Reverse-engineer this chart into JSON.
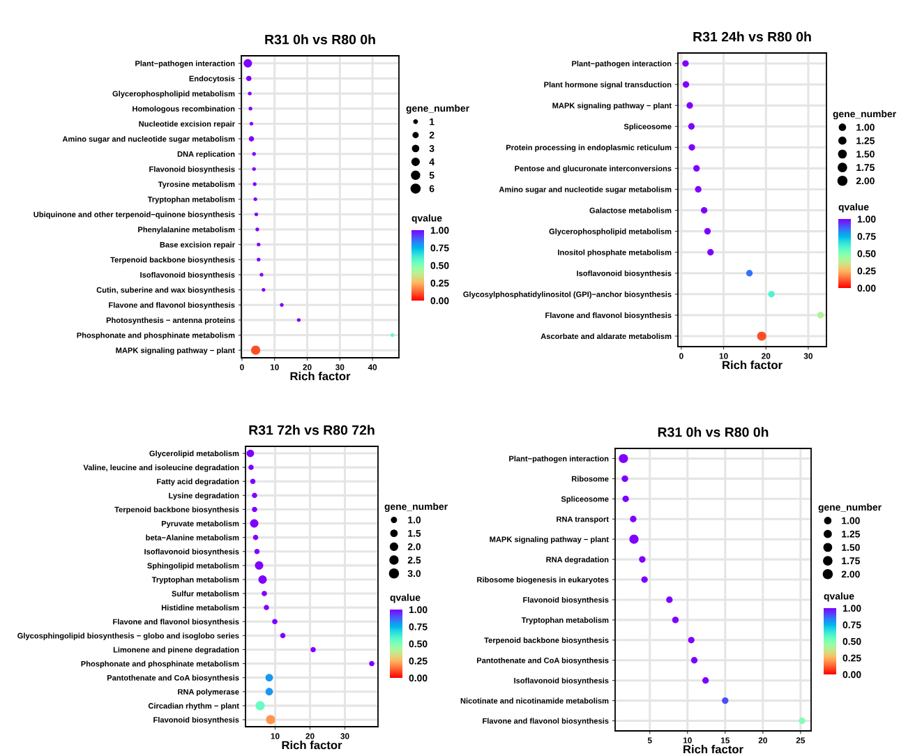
{
  "chart_data": [
    {
      "type": "bubble",
      "title": "R31 0h vs R80 0h",
      "xlabel": "Rich factor",
      "orientation": "horizontal",
      "categories": [
        "Plant−pathogen interaction",
        "Endocytosis",
        "Glycerophospholipid metabolism",
        "Homologous recombination",
        "Nucleotide excision repair",
        "Amino sugar and nucleotide sugar metabolism",
        "DNA replication",
        "Flavonoid biosynthesis",
        "Tyrosine metabolism",
        "Tryptophan metabolism",
        "Ubiquinone and other terpenoid−quinone biosynthesis",
        "Phenylalanine metabolism",
        "Base excision repair",
        "Terpenoid backbone biosynthesis",
        "Isoflavonoid biosynthesis",
        "Cutin, suberine and wax biosynthesis",
        "Flavone and flavonol biosynthesis",
        "Photosynthesis − antenna proteins",
        "Phosphonate and phosphinate metabolism",
        "MAPK signaling pathway − plant"
      ],
      "values": [
        1.8,
        2.1,
        2.4,
        2.6,
        2.9,
        2.9,
        3.7,
        3.7,
        3.9,
        4.1,
        4.4,
        4.7,
        5.1,
        5.1,
        6.0,
        6.6,
        12.2,
        17.4,
        46.1,
        4.2
      ],
      "sizes": [
        5,
        2,
        1,
        1,
        1,
        2,
        1,
        1,
        1,
        1,
        1,
        1,
        1,
        1,
        1,
        1,
        1,
        1,
        1,
        6
      ],
      "cvalues": [
        1.0,
        1.0,
        1.0,
        1.0,
        1.0,
        1.0,
        1.0,
        1.0,
        1.0,
        1.0,
        1.0,
        1.0,
        1.0,
        1.0,
        1.0,
        1.0,
        1.0,
        1.0,
        0.55,
        0.1
      ],
      "legend_title": "gene_number",
      "size_legend": [
        1,
        2,
        3,
        4,
        5,
        6
      ],
      "clabel": "qvalue",
      "clim": [
        0,
        1
      ],
      "cticks": [
        {
          "value": 0,
          "label": "0.00"
        },
        {
          "value": 0.25,
          "label": "0.25"
        },
        {
          "value": 0.5,
          "label": "0.50"
        },
        {
          "value": 0.75,
          "label": "0.75"
        },
        {
          "value": 1,
          "label": "1.00"
        }
      ],
      "xlim": [
        -0.2,
        48.1
      ],
      "xticks": [
        0,
        10,
        20,
        30,
        40
      ],
      "grid": true
    },
    {
      "type": "bubble",
      "title": "R31 24h vs R80 0h",
      "xlabel": "Rich factor",
      "orientation": "horizontal",
      "categories": [
        "Plant−pathogen interaction",
        "Plant hormone signal transduction",
        "MAPK signaling pathway − plant",
        "Spliceosome",
        "Protein processing in endoplasmic reticulum",
        "Pentose and glucuronate interconversions",
        "Amino sugar and nucleotide sugar metabolism",
        "Galactose metabolism",
        "Glycerophospholipid metabolism",
        "Inositol phosphate metabolism",
        "Isoflavonoid biosynthesis",
        "Glycosylphosphatidylinositol (GPI)−anchor biosynthesis",
        "Flavone and flavonol biosynthesis",
        "Ascorbate and aldarate metabolism"
      ],
      "values": [
        1.0,
        1.1,
        2.0,
        2.4,
        2.5,
        3.6,
        4.0,
        5.4,
        6.2,
        6.9,
        16.1,
        21.3,
        32.9,
        19.0
      ],
      "sizes": [
        1,
        1,
        1,
        1,
        1,
        1,
        1,
        1,
        1,
        1,
        1,
        1,
        1,
        2
      ],
      "cvalues": [
        1.0,
        1.0,
        1.0,
        1.0,
        1.0,
        1.0,
        1.0,
        1.0,
        1.0,
        1.0,
        0.85,
        0.6,
        0.4,
        0.1
      ],
      "legend_title": "gene_number",
      "size_legend": [
        {
          "value": 1,
          "label": "1.00"
        },
        {
          "value": 1.25,
          "label": "1.25"
        },
        {
          "value": 1.5,
          "label": "1.50"
        },
        {
          "value": 1.75,
          "label": "1.75"
        },
        {
          "value": 2,
          "label": "2.00"
        }
      ],
      "clabel": "qvalue",
      "clim": [
        0,
        1
      ],
      "cticks": [
        {
          "value": 0,
          "label": "0.00"
        },
        {
          "value": 0.25,
          "label": "0.25"
        },
        {
          "value": 0.5,
          "label": "0.50"
        },
        {
          "value": 0.75,
          "label": "0.75"
        },
        {
          "value": 1,
          "label": "1.00"
        }
      ],
      "xlim": [
        -0.8,
        34.3
      ],
      "xticks": [
        0,
        10,
        20,
        30
      ],
      "grid": true
    },
    {
      "type": "bubble",
      "title": "R31 72h vs R80 72h",
      "xlabel": "Rich factor",
      "orientation": "horizontal",
      "categories": [
        "Glycerolipid metabolism",
        "Valine, leucine and isoleucine degradation",
        "Fatty acid degradation",
        "Lysine degradation",
        "Terpenoid backbone biosynthesis",
        "Pyruvate metabolism",
        "beta−Alanine metabolism",
        "Isoflavonoid biosynthesis",
        "Sphingolipid metabolism",
        "Tryptophan metabolism",
        "Sulfur metabolism",
        "Histidine metabolism",
        "Flavone and flavonol biosynthesis",
        "Glycosphingolipid biosynthesis − globo and isoglobo series",
        "Limonene and pinene degradation",
        "Phosphonate and phosphinate metabolism",
        "Pantothenate and CoA biosynthesis",
        "RNA polymerase",
        "Circadian rhythm − plant",
        "Flavonoid biosynthesis"
      ],
      "values": [
        2.9,
        3.1,
        3.6,
        4.1,
        4.1,
        4.0,
        4.4,
        4.8,
        5.4,
        6.4,
        6.9,
        7.5,
        9.9,
        12.2,
        20.9,
        37.7,
        8.3,
        8.3,
        5.7,
        8.7
      ],
      "sizes": [
        2,
        1,
        1,
        1,
        1,
        2.5,
        1,
        1,
        2.5,
        2.5,
        1,
        1,
        1,
        1,
        1,
        1,
        2,
        2,
        3,
        3
      ],
      "cvalues": [
        1.0,
        1.0,
        1.0,
        1.0,
        1.0,
        1.0,
        1.0,
        1.0,
        1.0,
        1.0,
        1.0,
        1.0,
        1.0,
        1.0,
        1.0,
        1.0,
        0.8,
        0.8,
        0.55,
        0.2
      ],
      "legend_title": "gene_number",
      "size_legend": [
        {
          "value": 1,
          "label": "1.0"
        },
        1.5,
        {
          "value": 2,
          "label": "2.0"
        },
        2.5,
        {
          "value": 3,
          "label": "3.0"
        }
      ],
      "clabel": "qvalue",
      "clim": [
        0,
        1
      ],
      "cticks": [
        {
          "value": 0,
          "label": "0.00"
        },
        {
          "value": 0.25,
          "label": "0.25"
        },
        {
          "value": 0.5,
          "label": "0.50"
        },
        {
          "value": 0.75,
          "label": "0.75"
        },
        {
          "value": 1,
          "label": "1.00"
        }
      ],
      "xlim": [
        1.5,
        39.5
      ],
      "xticks": [
        10,
        20,
        30
      ],
      "grid": true
    },
    {
      "type": "bubble",
      "title": "R31 0h vs R80 0h",
      "xlabel": "Rich factor",
      "orientation": "horizontal",
      "categories": [
        "Plant−pathogen interaction",
        "Ribosome",
        "Spliceosome",
        "RNA transport",
        "MAPK signaling pathway − plant",
        "RNA degradation",
        "Ribosome biogenesis in eukaryotes",
        "Flavonoid biosynthesis",
        "Tryptophan metabolism",
        "Terpenoid backbone biosynthesis",
        "Pantothenate and CoA biosynthesis",
        "Isoflavonoid biosynthesis",
        "Nicotinate and nicotinamide metabolism",
        "Flavone and flavonol biosynthesis"
      ],
      "values": [
        1.5,
        1.7,
        1.8,
        2.8,
        2.9,
        4.0,
        4.3,
        7.6,
        8.4,
        10.5,
        10.9,
        12.4,
        15.0,
        25.2
      ],
      "sizes": [
        2,
        1,
        1,
        1,
        2,
        1,
        1,
        1,
        1,
        1,
        1,
        1,
        1,
        1
      ],
      "cvalues": [
        1.0,
        1.0,
        1.0,
        1.0,
        1.0,
        1.0,
        1.0,
        1.0,
        1.0,
        1.0,
        1.0,
        1.0,
        0.9,
        0.5
      ],
      "legend_title": "gene_number",
      "size_legend": [
        {
          "value": 1,
          "label": "1.00"
        },
        {
          "value": 1.25,
          "label": "1.25"
        },
        {
          "value": 1.5,
          "label": "1.50"
        },
        {
          "value": 1.75,
          "label": "1.75"
        },
        {
          "value": 2,
          "label": "2.00"
        }
      ],
      "clabel": "qvalue",
      "clim": [
        0,
        1
      ],
      "cticks": [
        {
          "value": 0,
          "label": "0.00"
        },
        {
          "value": 0.25,
          "label": "0.25"
        },
        {
          "value": 0.5,
          "label": "0.50"
        },
        {
          "value": 0.75,
          "label": "0.75"
        },
        {
          "value": 1,
          "label": "1.00"
        }
      ],
      "xlim": [
        0.4,
        26.4
      ],
      "xticks": [
        5,
        10,
        15,
        20,
        25
      ],
      "grid": true
    }
  ]
}
